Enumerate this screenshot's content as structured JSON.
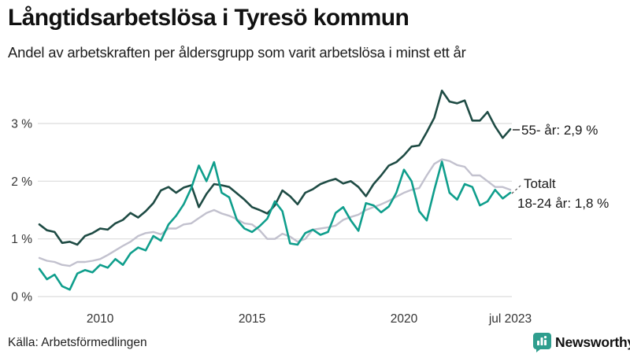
{
  "header": {
    "title": "Långtidsarbetslösa i Tyresö kommun",
    "subtitle": "Andel av arbetskraften per åldersgrupp som varit arbetslösa i minst ett år"
  },
  "chart_data": {
    "type": "line",
    "title": "Långtidsarbetslösa i Tyresö kommun",
    "subtitle": "Andel av arbetskraften per åldersgrupp som varit arbetslösa i minst ett år",
    "xlabel": "",
    "ylabel": "",
    "unit": "% av arbetskraften",
    "xlim": [
      2008,
      2023.58
    ],
    "ylim": [
      0,
      3.8
    ],
    "grid": "horizontal",
    "legend_position": "end-of-line-labels",
    "x": [
      2008.0,
      2008.25,
      2008.5,
      2008.75,
      2009.0,
      2009.25,
      2009.5,
      2009.75,
      2010.0,
      2010.25,
      2010.5,
      2010.75,
      2011.0,
      2011.25,
      2011.5,
      2011.75,
      2012.0,
      2012.25,
      2012.5,
      2012.75,
      2013.0,
      2013.25,
      2013.5,
      2013.75,
      2014.0,
      2014.25,
      2014.5,
      2014.75,
      2015.0,
      2015.25,
      2015.5,
      2015.75,
      2016.0,
      2016.25,
      2016.5,
      2016.75,
      2017.0,
      2017.25,
      2017.5,
      2017.75,
      2018.0,
      2018.25,
      2018.5,
      2018.75,
      2019.0,
      2019.25,
      2019.5,
      2019.75,
      2020.0,
      2020.25,
      2020.5,
      2020.75,
      2021.0,
      2021.25,
      2021.5,
      2021.75,
      2022.0,
      2022.25,
      2022.5,
      2022.75,
      2023.0,
      2023.25,
      2023.5
    ],
    "series": [
      {
        "id": "55-ar",
        "name": "55- år",
        "color": "#1e4b44",
        "stroke_width": 2.6,
        "end_value_label": "2,9 %",
        "values": [
          1.25,
          1.15,
          1.12,
          0.93,
          0.95,
          0.9,
          1.05,
          1.1,
          1.18,
          1.16,
          1.27,
          1.33,
          1.45,
          1.37,
          1.48,
          1.62,
          1.84,
          1.9,
          1.8,
          1.89,
          1.93,
          1.55,
          1.78,
          1.95,
          1.93,
          1.9,
          1.79,
          1.68,
          1.55,
          1.5,
          1.44,
          1.58,
          1.84,
          1.74,
          1.6,
          1.8,
          1.86,
          1.95,
          2.0,
          2.04,
          1.96,
          2.0,
          1.9,
          1.74,
          1.95,
          2.1,
          2.27,
          2.33,
          2.45,
          2.6,
          2.62,
          2.85,
          3.1,
          3.57,
          3.38,
          3.35,
          3.4,
          3.05,
          3.05,
          3.2,
          2.95,
          2.75,
          2.9
        ]
      },
      {
        "id": "totalt",
        "name": "Totalt",
        "color": "#c2c1ce",
        "stroke_width": 2.4,
        "end_value_label": "",
        "values": [
          0.67,
          0.62,
          0.6,
          0.55,
          0.53,
          0.6,
          0.6,
          0.62,
          0.65,
          0.72,
          0.8,
          0.88,
          0.95,
          1.05,
          1.1,
          1.12,
          1.08,
          1.18,
          1.18,
          1.25,
          1.27,
          1.36,
          1.45,
          1.5,
          1.44,
          1.4,
          1.34,
          1.27,
          1.25,
          1.15,
          1.0,
          1.0,
          1.09,
          1.04,
          0.95,
          1.0,
          1.16,
          1.18,
          1.2,
          1.23,
          1.33,
          1.38,
          1.42,
          1.5,
          1.55,
          1.6,
          1.66,
          1.73,
          1.8,
          1.85,
          1.88,
          2.1,
          2.3,
          2.38,
          2.35,
          2.28,
          2.25,
          2.1,
          2.1,
          2.0,
          1.9,
          1.9,
          1.85
        ]
      },
      {
        "id": "18-24-ar",
        "name": "18-24 år",
        "color": "#0f9e8c",
        "stroke_width": 2.6,
        "end_value_label": "1,8 %",
        "values": [
          0.48,
          0.3,
          0.38,
          0.18,
          0.12,
          0.4,
          0.46,
          0.42,
          0.55,
          0.5,
          0.65,
          0.55,
          0.75,
          0.85,
          0.8,
          1.05,
          0.97,
          1.25,
          1.4,
          1.6,
          1.88,
          2.27,
          2.0,
          2.33,
          1.8,
          1.72,
          1.33,
          1.18,
          1.12,
          1.22,
          1.35,
          1.65,
          1.48,
          0.92,
          0.9,
          1.1,
          1.16,
          1.07,
          1.12,
          1.45,
          1.55,
          1.32,
          1.14,
          1.62,
          1.58,
          1.46,
          1.56,
          1.8,
          2.2,
          2.0,
          1.48,
          1.32,
          1.85,
          2.34,
          1.8,
          1.68,
          1.95,
          1.9,
          1.58,
          1.65,
          1.85,
          1.7,
          1.8
        ]
      }
    ],
    "y_ticks": [
      {
        "value": 0,
        "label": "0 %"
      },
      {
        "value": 1,
        "label": "1 %"
      },
      {
        "value": 2,
        "label": "2 %"
      },
      {
        "value": 3,
        "label": "3 %"
      }
    ],
    "x_ticks": [
      {
        "value": 2010,
        "label": "2010"
      },
      {
        "value": 2015,
        "label": "2015"
      },
      {
        "value": 2020,
        "label": "2020"
      },
      {
        "value": 2023.5,
        "label": "jul 2023"
      }
    ],
    "annotations": [
      {
        "series": "55-ar",
        "text": "55- år: 2,9 %",
        "leader": "solid"
      },
      {
        "series": "totalt",
        "text": "Totalt",
        "leader": "dashed"
      },
      {
        "series": "18-24-ar",
        "text": "18-24 år: 1,8 %",
        "leader": "none"
      }
    ],
    "colors": {
      "grid": "#dcdcdc",
      "tick_text": "#333333",
      "annotation_text": "#1a1a1a"
    }
  },
  "footer": {
    "source": "Källa: Arbetsförmedlingen",
    "brand": "Newsworthy",
    "brand_icon": "bar-chart-speech-bubble-icon",
    "brand_color": "#2f9e8e"
  }
}
